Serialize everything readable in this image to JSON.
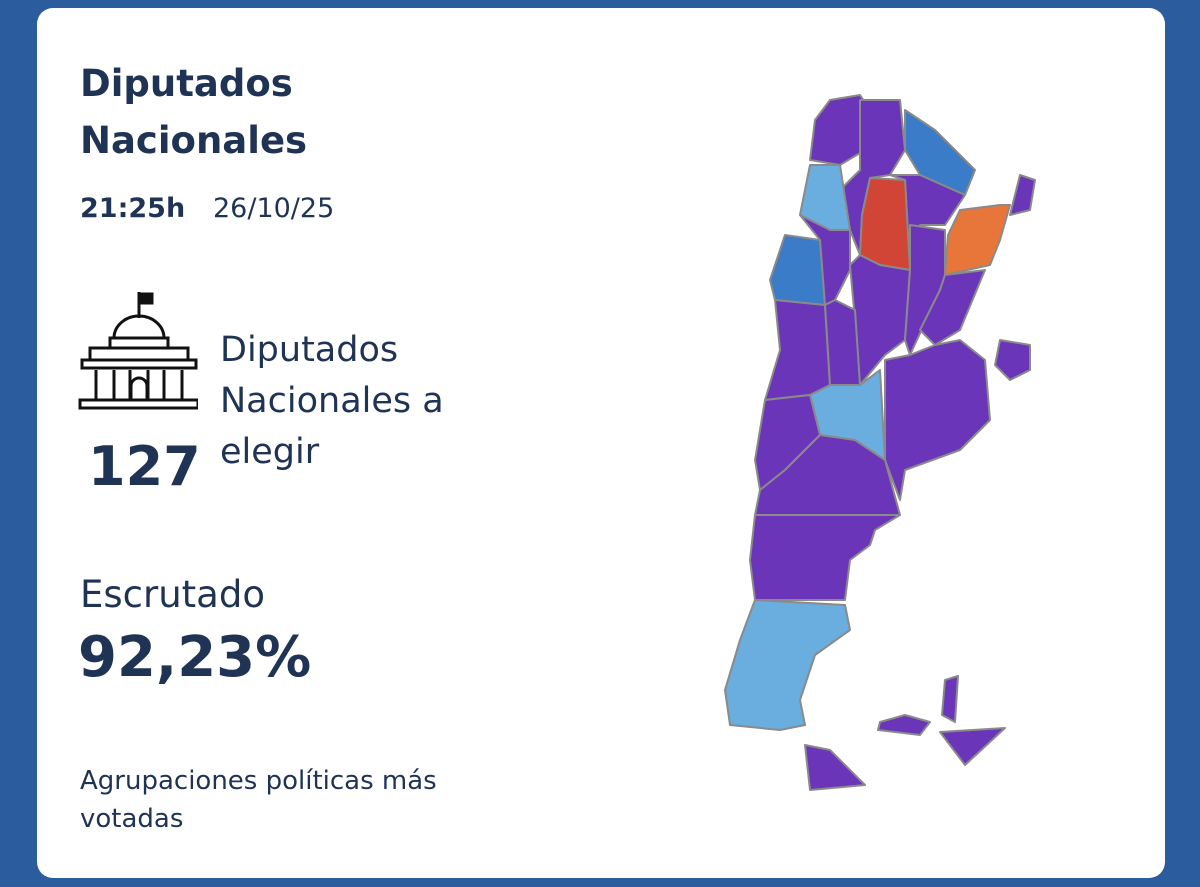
{
  "header": {
    "title": "Diputados Nacionales",
    "time": "21:25h",
    "date": "26/10/25"
  },
  "seats": {
    "label": "Diputados Nacionales a elegir",
    "count": "127"
  },
  "count": {
    "label": "Escrutado",
    "value": "92,23%"
  },
  "footer": {
    "text": "Agrupaciones políticas más votadas"
  }
}
